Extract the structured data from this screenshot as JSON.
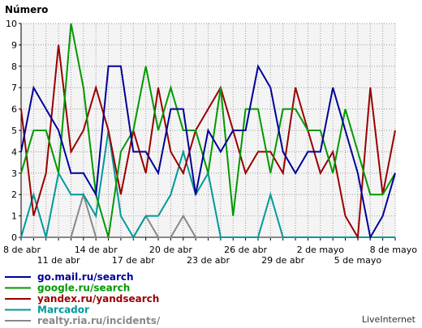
{
  "chart_data": {
    "type": "line",
    "ylabel": "Número",
    "ylim": [
      0,
      10
    ],
    "yticks": [
      0,
      1,
      2,
      3,
      4,
      5,
      6,
      7,
      8,
      9,
      10
    ],
    "x_tick_labels_row1": [
      "8 de abr",
      "14 de abr",
      "20 de abr",
      "26 de abr",
      "2 de mayo",
      "8 de mayo"
    ],
    "x_tick_labels_row2": [
      "11 de abr",
      "17 de abr",
      "23 de abr",
      "29 de abr",
      "5 de mayo"
    ],
    "grid": true,
    "legend_position": "bottom-left",
    "brand": "LiveInternet",
    "series": [
      {
        "name": "go.mail.ru/search",
        "color": "#000099",
        "values": [
          4,
          7,
          6,
          5,
          3,
          3,
          2,
          8,
          8,
          4,
          4,
          3,
          6,
          6,
          2,
          5,
          4,
          5,
          5,
          8,
          7,
          4,
          3,
          4,
          4,
          7,
          5,
          3,
          0,
          1,
          3
        ]
      },
      {
        "name": "google.ru/search",
        "color": "#009900",
        "values": [
          3,
          5,
          5,
          3,
          10,
          7,
          2,
          0,
          4,
          5,
          8,
          5,
          7,
          5,
          5,
          3,
          7,
          1,
          6,
          6,
          3,
          6,
          6,
          5,
          5,
          3,
          6,
          4,
          2,
          2,
          3
        ]
      },
      {
        "name": "yandex.ru/yandsearch",
        "color": "#990000",
        "values": [
          6,
          1,
          3,
          9,
          4,
          5,
          7,
          5,
          2,
          5,
          3,
          7,
          4,
          3,
          5,
          6,
          7,
          5,
          3,
          4,
          4,
          3,
          7,
          5,
          3,
          4,
          1,
          0,
          7,
          2,
          5
        ]
      },
      {
        "name": "Marcador",
        "color": "#009999",
        "values": [
          0,
          2,
          0,
          3,
          2,
          2,
          1,
          5,
          1,
          0,
          1,
          1,
          2,
          4,
          2,
          3,
          0,
          0,
          0,
          0,
          2,
          0,
          0,
          0,
          0,
          0,
          0,
          0,
          0,
          0,
          0
        ]
      },
      {
        "name": "realty.ria.ru/incidents/",
        "color": "#888888",
        "values": [
          0,
          0,
          0,
          0,
          0,
          2,
          0,
          0,
          0,
          0,
          1,
          0,
          0,
          1,
          0,
          0,
          0,
          0,
          0,
          0,
          0,
          0,
          0,
          0,
          0,
          0,
          0,
          0,
          0,
          0,
          0
        ]
      }
    ]
  }
}
